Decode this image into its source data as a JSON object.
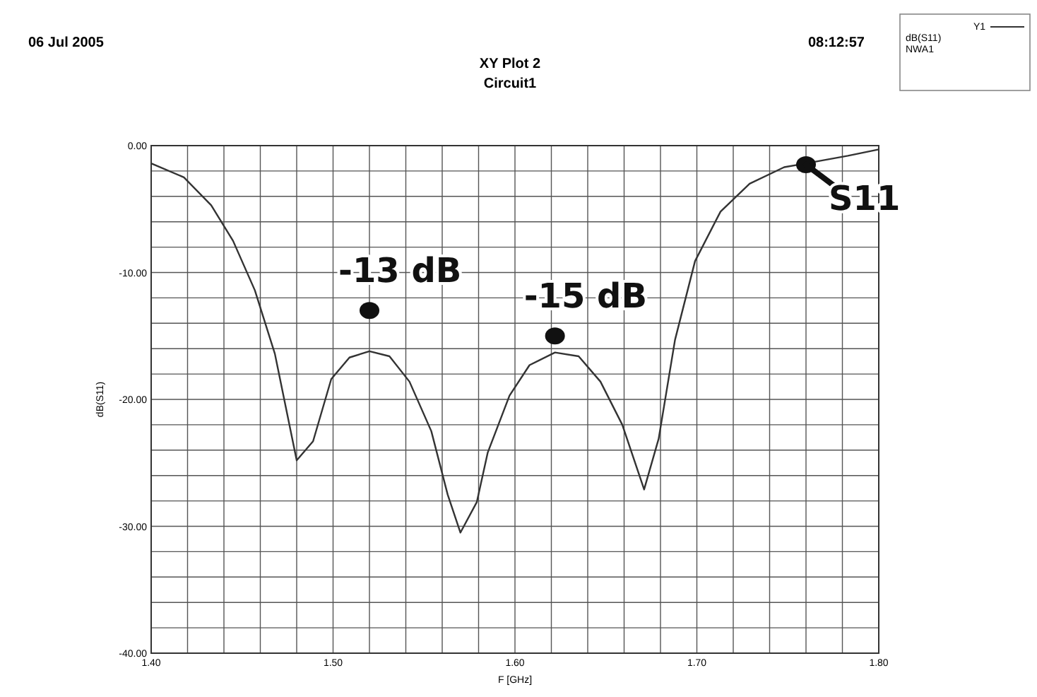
{
  "chart_data": {
    "type": "line",
    "title": "XY Plot 2",
    "subtitle": "Circuit1",
    "xlabel": "F [GHz]",
    "ylabel": "dB(S11)",
    "legend_title": "Y1",
    "legend": "top right",
    "grid": true,
    "x": [
      1.4,
      1.418,
      1.433,
      1.445,
      1.457,
      1.468,
      1.48,
      1.489,
      1.499,
      1.509,
      1.52,
      1.531,
      1.542,
      1.554,
      1.563,
      1.57,
      1.579,
      1.585,
      1.597,
      1.608,
      1.622,
      1.635,
      1.647,
      1.659,
      1.671,
      1.679,
      1.688,
      1.699,
      1.713,
      1.729,
      1.748,
      1.76,
      1.783,
      1.8
    ],
    "series": [
      {
        "name": "dB(S11)",
        "color": "#333333",
        "values": [
          -1.4,
          -2.5,
          -4.7,
          -7.5,
          -11.4,
          -16.4,
          -24.8,
          -23.3,
          -18.4,
          -16.7,
          -16.2,
          -16.6,
          -18.6,
          -22.5,
          -27.5,
          -30.5,
          -28.1,
          -24.2,
          -19.7,
          -17.3,
          -16.3,
          -16.6,
          -18.6,
          -22,
          -27.1,
          -23.1,
          -15.3,
          -9.1,
          -5.2,
          -3,
          -1.7,
          -1.4,
          -0.8,
          -0.3
        ]
      }
    ],
    "xlim": [
      1.4,
      1.8
    ],
    "ylim": [
      -40,
      0
    ],
    "xticks": [
      {
        "value": 1.4,
        "label": "1.40"
      },
      {
        "value": 1.42,
        "label": null
      },
      {
        "value": 1.44,
        "label": null
      },
      {
        "value": 1.46,
        "label": null
      },
      {
        "value": 1.48,
        "label": null
      },
      {
        "value": 1.5,
        "label": "1.50"
      },
      {
        "value": 1.52,
        "label": null
      },
      {
        "value": 1.54,
        "label": null
      },
      {
        "value": 1.56,
        "label": null
      },
      {
        "value": 1.58,
        "label": null
      },
      {
        "value": 1.6,
        "label": "1.60"
      },
      {
        "value": 1.62,
        "label": null
      },
      {
        "value": 1.64,
        "label": null
      },
      {
        "value": 1.66,
        "label": null
      },
      {
        "value": 1.68,
        "label": null
      },
      {
        "value": 1.7,
        "label": "1.70"
      },
      {
        "value": 1.72,
        "label": null
      },
      {
        "value": 1.74,
        "label": null
      },
      {
        "value": 1.76,
        "label": null
      },
      {
        "value": 1.78,
        "label": null
      },
      {
        "value": 1.8,
        "label": "1.80"
      }
    ],
    "yticks": [
      {
        "value": -40,
        "label": "-40.00"
      },
      {
        "value": -38,
        "label": null
      },
      {
        "value": -36,
        "label": null
      },
      {
        "value": -34,
        "label": null
      },
      {
        "value": -32,
        "label": null
      },
      {
        "value": -30,
        "label": "-30.00"
      },
      {
        "value": -28,
        "label": null
      },
      {
        "value": -26,
        "label": null
      },
      {
        "value": -24,
        "label": null
      },
      {
        "value": -22,
        "label": null
      },
      {
        "value": -20,
        "label": "-20.00"
      },
      {
        "value": -18,
        "label": null
      },
      {
        "value": -16,
        "label": null
      },
      {
        "value": -14,
        "label": null
      },
      {
        "value": -12,
        "label": null
      },
      {
        "value": -10,
        "label": "-10.00"
      },
      {
        "value": -8,
        "label": null
      },
      {
        "value": -6,
        "label": null
      },
      {
        "value": -4,
        "label": null
      },
      {
        "value": -2,
        "label": null
      },
      {
        "value": 0,
        "label": "0.00"
      }
    ],
    "annotations": [
      "06 Jul 2005",
      "08:12:57",
      "NWA1",
      {
        "text": "-13 dB",
        "x": 1.52,
        "y": -13
      },
      {
        "text": "-15 dB",
        "x": 1.622,
        "y": -15
      },
      {
        "text": "S11",
        "x": 1.76,
        "y": -1.5
      }
    ]
  }
}
